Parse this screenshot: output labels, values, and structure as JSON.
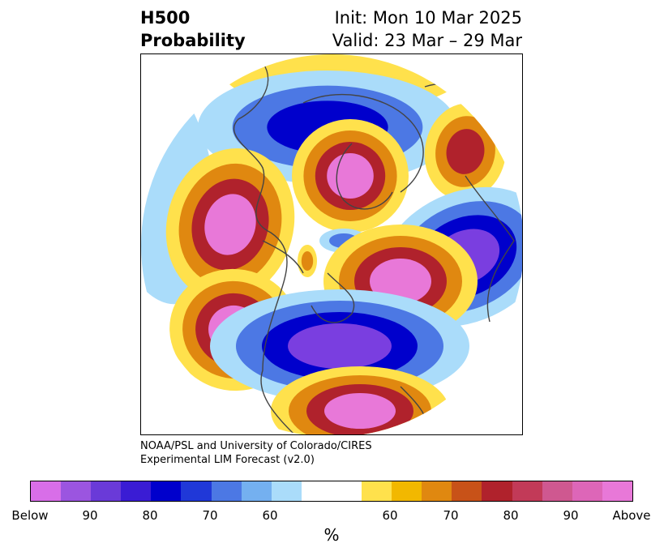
{
  "header": {
    "title_line1": "H500",
    "title_line2": "Probability",
    "init": "Init: Mon 10 Mar 2025",
    "valid": "Valid: 23 Mar – 29 Mar"
  },
  "credit": {
    "line1": "NOAA/PSL and University of Colorado/CIRES",
    "line2": "Experimental LIM Forecast (v2.0)"
  },
  "colorbar": {
    "unit": "%",
    "colors": [
      "#d86ee8",
      "#9b55e0",
      "#6a3ad8",
      "#3a1cd4",
      "#0000cc",
      "#2038d8",
      "#4c78e4",
      "#74b0f0",
      "#aadcfa",
      "#ffffff",
      "#ffe14c",
      "#f2b800",
      "#e08810",
      "#c85218",
      "#b0222c",
      "#c23a58",
      "#cf5890",
      "#dd66b8",
      "#e878d8"
    ],
    "tick_labels": [
      "Below",
      "90",
      "80",
      "70",
      "60",
      "60",
      "70",
      "80",
      "90",
      "Above"
    ]
  },
  "map": {
    "colors": {
      "below_strong": "#7a3ee0",
      "below_mid": "#0000cc",
      "below_weak": "#4c78e4",
      "below_faint": "#aadcfa",
      "above_faint": "#ffe14c",
      "above_weak": "#e08810",
      "above_mid": "#b0222c",
      "above_strong": "#e878d8",
      "coastline": "#444444"
    }
  }
}
